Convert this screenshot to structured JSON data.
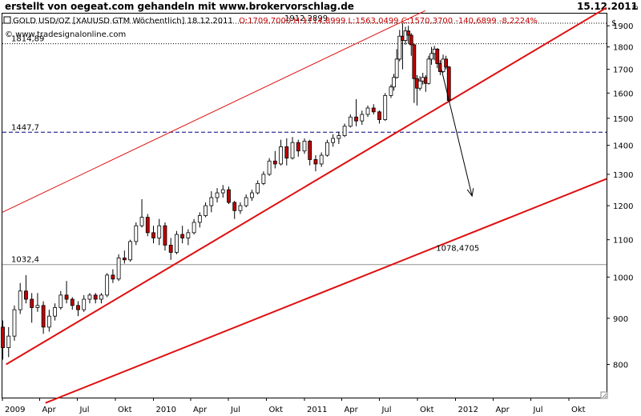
{
  "page": {
    "header_left": "erstellt von oegeat.com gehandeln mit www.brokervorschlag.de",
    "header_right": "15.12.2011"
  },
  "info_bar": {
    "instrument": "GOLD USD/OZ [XAUUSD GTM  Wöchentlich] 18.12.2011",
    "ohlc": "O:1709,7000 H:1714,8999 L:1563,0499 C:1570,3700 -140,6899 -8,2224%",
    "copyright": "© www.tradesignalonline.com",
    "currency_symbol": "$",
    "corner_label": "In"
  },
  "colors": {
    "up_candle": "#ffffff",
    "down_candle": "#c00000",
    "trendline": "#e01010",
    "level_label": "#000080",
    "grid": "#000000"
  },
  "chart_data": {
    "type": "candlestick",
    "title": "GOLD USD/OZ",
    "ylabel": "$",
    "ylim": [
      735,
      1960
    ],
    "xlim": [
      "2009-01-01",
      "2012-12-31"
    ],
    "x_ticks": [
      {
        "date": "2009-01-01",
        "label": "2009"
      },
      {
        "date": "2009-04-01",
        "label": "Apr"
      },
      {
        "date": "2009-07-01",
        "label": "Jul"
      },
      {
        "date": "2009-10-01",
        "label": "Okt"
      },
      {
        "date": "2010-01-01",
        "label": "2010"
      },
      {
        "date": "2010-04-01",
        "label": "Apr"
      },
      {
        "date": "2010-07-01",
        "label": "Jul"
      },
      {
        "date": "2010-10-01",
        "label": "Okt"
      },
      {
        "date": "2011-01-01",
        "label": "2011"
      },
      {
        "date": "2011-04-01",
        "label": "Apr"
      },
      {
        "date": "2011-07-01",
        "label": "Jul"
      },
      {
        "date": "2011-10-01",
        "label": "Okt"
      },
      {
        "date": "2012-01-01",
        "label": "2012"
      },
      {
        "date": "2012-04-01",
        "label": "Apr"
      },
      {
        "date": "2012-07-01",
        "label": "Jul"
      },
      {
        "date": "2012-10-01",
        "label": "Okt"
      }
    ],
    "y_ticks": [
      800,
      900,
      1000,
      1100,
      1200,
      1300,
      1400,
      1500,
      1600,
      1700,
      1800,
      1900
    ],
    "levels": [
      {
        "value": 1912.2899,
        "label": "1912,2899",
        "style": "dotted",
        "color": "#000000",
        "label_color": "#000080"
      },
      {
        "value": 1814.89,
        "label": "1814,89",
        "style": "dotted",
        "color": "#000000",
        "label_color": "#000080"
      },
      {
        "value": 1447.7,
        "label": "1447,7",
        "style": "dashed",
        "color": "#000080",
        "label_color": "#000080"
      },
      {
        "value": 1032.4,
        "label": "1032,4",
        "style": "solid",
        "color": "#909090",
        "label_color": "#909090"
      }
    ],
    "trendlines": [
      {
        "from": {
          "date": "2009-01-01",
          "value": 1180
        },
        "to": {
          "date": "2011-10-20",
          "value": 1975
        },
        "width": 1
      },
      {
        "from": {
          "date": "2009-01-10",
          "value": 800
        },
        "to": {
          "date": "2012-12-31",
          "value": 1990
        },
        "width": 2
      },
      {
        "from": {
          "date": "2009-04-15",
          "value": 725
        },
        "to": {
          "date": "2012-12-31",
          "value": 1285
        },
        "width": 2
      }
    ],
    "annotations": [
      {
        "date": "2011-11-15",
        "value": 1078.4705,
        "label": "1078,4705",
        "color": "#c00000"
      }
    ],
    "arrows": [
      {
        "from": {
          "date": "2011-11-28",
          "value": 1700
        },
        "to": {
          "date": "2012-02-10",
          "value": 1230
        }
      }
    ],
    "candles": [
      {
        "date": "2009-01-02",
        "open": 880,
        "high": 895,
        "low": 810,
        "close": 835
      },
      {
        "date": "2009-01-16",
        "open": 835,
        "high": 880,
        "low": 815,
        "close": 860
      },
      {
        "date": "2009-01-30",
        "open": 860,
        "high": 930,
        "low": 850,
        "close": 920
      },
      {
        "date": "2009-02-13",
        "open": 920,
        "high": 985,
        "low": 910,
        "close": 965
      },
      {
        "date": "2009-02-27",
        "open": 965,
        "high": 1005,
        "low": 935,
        "close": 945
      },
      {
        "date": "2009-03-13",
        "open": 945,
        "high": 960,
        "low": 890,
        "close": 925
      },
      {
        "date": "2009-03-27",
        "open": 925,
        "high": 960,
        "low": 915,
        "close": 930
      },
      {
        "date": "2009-04-10",
        "open": 930,
        "high": 940,
        "low": 865,
        "close": 880
      },
      {
        "date": "2009-04-24",
        "open": 880,
        "high": 920,
        "low": 870,
        "close": 905
      },
      {
        "date": "2009-05-08",
        "open": 905,
        "high": 935,
        "low": 895,
        "close": 925
      },
      {
        "date": "2009-05-22",
        "open": 925,
        "high": 965,
        "low": 920,
        "close": 955
      },
      {
        "date": "2009-06-05",
        "open": 955,
        "high": 990,
        "low": 935,
        "close": 945
      },
      {
        "date": "2009-06-19",
        "open": 945,
        "high": 950,
        "low": 920,
        "close": 930
      },
      {
        "date": "2009-07-03",
        "open": 930,
        "high": 940,
        "low": 905,
        "close": 920
      },
      {
        "date": "2009-07-17",
        "open": 920,
        "high": 955,
        "low": 915,
        "close": 945
      },
      {
        "date": "2009-07-31",
        "open": 945,
        "high": 960,
        "low": 935,
        "close": 955
      },
      {
        "date": "2009-08-14",
        "open": 955,
        "high": 960,
        "low": 935,
        "close": 945
      },
      {
        "date": "2009-08-28",
        "open": 945,
        "high": 960,
        "low": 935,
        "close": 955
      },
      {
        "date": "2009-09-11",
        "open": 955,
        "high": 1010,
        "low": 950,
        "close": 1005
      },
      {
        "date": "2009-09-25",
        "open": 1005,
        "high": 1020,
        "low": 985,
        "close": 995
      },
      {
        "date": "2009-10-09",
        "open": 995,
        "high": 1060,
        "low": 990,
        "close": 1050
      },
      {
        "date": "2009-10-23",
        "open": 1050,
        "high": 1070,
        "low": 1035,
        "close": 1045
      },
      {
        "date": "2009-11-06",
        "open": 1045,
        "high": 1100,
        "low": 1040,
        "close": 1095
      },
      {
        "date": "2009-11-20",
        "open": 1095,
        "high": 1150,
        "low": 1085,
        "close": 1140
      },
      {
        "date": "2009-12-04",
        "open": 1140,
        "high": 1220,
        "low": 1135,
        "close": 1165
      },
      {
        "date": "2009-12-18",
        "open": 1165,
        "high": 1175,
        "low": 1110,
        "close": 1120
      },
      {
        "date": "2010-01-01",
        "open": 1120,
        "high": 1140,
        "low": 1090,
        "close": 1105
      },
      {
        "date": "2010-01-15",
        "open": 1105,
        "high": 1160,
        "low": 1085,
        "close": 1140
      },
      {
        "date": "2010-01-29",
        "open": 1140,
        "high": 1150,
        "low": 1070,
        "close": 1085
      },
      {
        "date": "2010-02-12",
        "open": 1085,
        "high": 1105,
        "low": 1045,
        "close": 1065
      },
      {
        "date": "2010-02-26",
        "open": 1065,
        "high": 1125,
        "low": 1060,
        "close": 1115
      },
      {
        "date": "2010-03-12",
        "open": 1115,
        "high": 1140,
        "low": 1090,
        "close": 1105
      },
      {
        "date": "2010-03-26",
        "open": 1105,
        "high": 1130,
        "low": 1085,
        "close": 1120
      },
      {
        "date": "2010-04-09",
        "open": 1120,
        "high": 1160,
        "low": 1115,
        "close": 1150
      },
      {
        "date": "2010-04-23",
        "open": 1150,
        "high": 1180,
        "low": 1135,
        "close": 1170
      },
      {
        "date": "2010-05-07",
        "open": 1170,
        "high": 1210,
        "low": 1165,
        "close": 1200
      },
      {
        "date": "2010-05-21",
        "open": 1200,
        "high": 1245,
        "low": 1180,
        "close": 1225
      },
      {
        "date": "2010-06-04",
        "open": 1225,
        "high": 1255,
        "low": 1210,
        "close": 1240
      },
      {
        "date": "2010-06-18",
        "open": 1240,
        "high": 1265,
        "low": 1225,
        "close": 1250
      },
      {
        "date": "2010-07-02",
        "open": 1250,
        "high": 1260,
        "low": 1205,
        "close": 1210
      },
      {
        "date": "2010-07-16",
        "open": 1210,
        "high": 1215,
        "low": 1160,
        "close": 1185
      },
      {
        "date": "2010-07-30",
        "open": 1185,
        "high": 1210,
        "low": 1175,
        "close": 1200
      },
      {
        "date": "2010-08-13",
        "open": 1200,
        "high": 1235,
        "low": 1195,
        "close": 1225
      },
      {
        "date": "2010-08-27",
        "open": 1225,
        "high": 1250,
        "low": 1215,
        "close": 1240
      },
      {
        "date": "2010-09-10",
        "open": 1240,
        "high": 1280,
        "low": 1235,
        "close": 1270
      },
      {
        "date": "2010-09-24",
        "open": 1270,
        "high": 1310,
        "low": 1265,
        "close": 1300
      },
      {
        "date": "2010-10-08",
        "open": 1300,
        "high": 1355,
        "low": 1295,
        "close": 1345
      },
      {
        "date": "2010-10-22",
        "open": 1345,
        "high": 1380,
        "low": 1320,
        "close": 1335
      },
      {
        "date": "2010-11-05",
        "open": 1335,
        "high": 1420,
        "low": 1330,
        "close": 1395
      },
      {
        "date": "2010-11-19",
        "open": 1395,
        "high": 1425,
        "low": 1330,
        "close": 1355
      },
      {
        "date": "2010-12-03",
        "open": 1355,
        "high": 1430,
        "low": 1350,
        "close": 1410
      },
      {
        "date": "2010-12-17",
        "open": 1410,
        "high": 1420,
        "low": 1360,
        "close": 1380
      },
      {
        "date": "2011-01-01",
        "open": 1380,
        "high": 1425,
        "low": 1370,
        "close": 1415
      },
      {
        "date": "2011-01-14",
        "open": 1415,
        "high": 1420,
        "low": 1330,
        "close": 1350
      },
      {
        "date": "2011-01-28",
        "open": 1350,
        "high": 1365,
        "low": 1310,
        "close": 1335
      },
      {
        "date": "2011-02-11",
        "open": 1335,
        "high": 1375,
        "low": 1325,
        "close": 1365
      },
      {
        "date": "2011-02-25",
        "open": 1365,
        "high": 1420,
        "low": 1360,
        "close": 1410
      },
      {
        "date": "2011-03-11",
        "open": 1410,
        "high": 1440,
        "low": 1395,
        "close": 1425
      },
      {
        "date": "2011-03-25",
        "open": 1425,
        "high": 1450,
        "low": 1405,
        "close": 1435
      },
      {
        "date": "2011-04-08",
        "open": 1435,
        "high": 1480,
        "low": 1430,
        "close": 1470
      },
      {
        "date": "2011-04-22",
        "open": 1470,
        "high": 1515,
        "low": 1465,
        "close": 1505
      },
      {
        "date": "2011-05-06",
        "open": 1505,
        "high": 1575,
        "low": 1470,
        "close": 1490
      },
      {
        "date": "2011-05-20",
        "open": 1490,
        "high": 1530,
        "low": 1475,
        "close": 1515
      },
      {
        "date": "2011-06-03",
        "open": 1515,
        "high": 1550,
        "low": 1505,
        "close": 1540
      },
      {
        "date": "2011-06-17",
        "open": 1540,
        "high": 1555,
        "low": 1515,
        "close": 1525
      },
      {
        "date": "2011-07-01",
        "open": 1525,
        "high": 1530,
        "low": 1480,
        "close": 1495
      },
      {
        "date": "2011-07-15",
        "open": 1495,
        "high": 1600,
        "low": 1490,
        "close": 1590
      },
      {
        "date": "2011-07-29",
        "open": 1590,
        "high": 1635,
        "low": 1580,
        "close": 1625
      },
      {
        "date": "2011-08-05",
        "open": 1625,
        "high": 1680,
        "low": 1610,
        "close": 1665
      },
      {
        "date": "2011-08-12",
        "open": 1665,
        "high": 1790,
        "low": 1660,
        "close": 1745
      },
      {
        "date": "2011-08-19",
        "open": 1745,
        "high": 1880,
        "low": 1735,
        "close": 1850
      },
      {
        "date": "2011-08-26",
        "open": 1850,
        "high": 1912,
        "low": 1700,
        "close": 1830
      },
      {
        "date": "2011-09-02",
        "open": 1830,
        "high": 1895,
        "low": 1810,
        "close": 1875
      },
      {
        "date": "2011-09-09",
        "open": 1875,
        "high": 1900,
        "low": 1815,
        "close": 1855
      },
      {
        "date": "2011-09-16",
        "open": 1855,
        "high": 1865,
        "low": 1760,
        "close": 1810
      },
      {
        "date": "2011-09-23",
        "open": 1810,
        "high": 1815,
        "low": 1560,
        "close": 1660
      },
      {
        "date": "2011-09-30",
        "open": 1660,
        "high": 1675,
        "low": 1550,
        "close": 1620
      },
      {
        "date": "2011-10-07",
        "open": 1620,
        "high": 1670,
        "low": 1610,
        "close": 1650
      },
      {
        "date": "2011-10-14",
        "open": 1650,
        "high": 1685,
        "low": 1635,
        "close": 1665
      },
      {
        "date": "2011-10-21",
        "open": 1665,
        "high": 1675,
        "low": 1605,
        "close": 1640
      },
      {
        "date": "2011-10-28",
        "open": 1640,
        "high": 1760,
        "low": 1635,
        "close": 1745
      },
      {
        "date": "2011-11-04",
        "open": 1745,
        "high": 1800,
        "low": 1720,
        "close": 1770
      },
      {
        "date": "2011-11-11",
        "open": 1770,
        "high": 1805,
        "low": 1740,
        "close": 1790
      },
      {
        "date": "2011-11-18",
        "open": 1790,
        "high": 1795,
        "low": 1705,
        "close": 1725
      },
      {
        "date": "2011-11-25",
        "open": 1725,
        "high": 1740,
        "low": 1675,
        "close": 1690
      },
      {
        "date": "2011-12-02",
        "open": 1690,
        "high": 1765,
        "low": 1685,
        "close": 1745
      },
      {
        "date": "2011-12-09",
        "open": 1745,
        "high": 1760,
        "low": 1700,
        "close": 1710
      },
      {
        "date": "2011-12-16",
        "open": 1710,
        "high": 1715,
        "low": 1563,
        "close": 1570
      }
    ]
  }
}
